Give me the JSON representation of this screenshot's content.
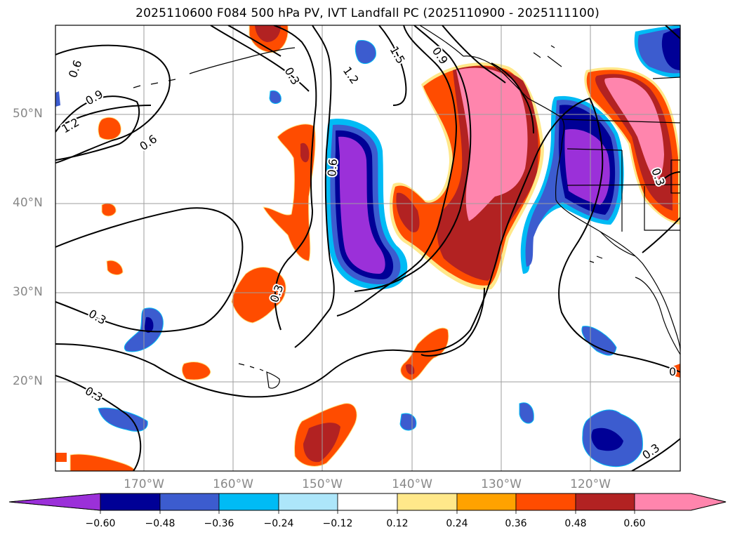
{
  "title": "2025110600 F084 500 hPa PV, IVT Landfall PC (2025110900 - 2025111100)",
  "map": {
    "lat_labels": [
      "50°N",
      "40°N",
      "30°N",
      "20°N"
    ],
    "lon_labels": [
      "170°W",
      "160°W",
      "150°W",
      "140°W",
      "130°W",
      "120°W"
    ],
    "contour_labels": [
      "0.6",
      "0.9",
      "1.2",
      "0.6",
      "0.3",
      "1.2",
      "1.5",
      "0.9",
      "0.6",
      "0.3",
      "0.3",
      "0.3",
      "0.3",
      "0.3",
      "0"
    ]
  },
  "colorbar": {
    "ticks": [
      "−0.60",
      "−0.48",
      "−0.36",
      "−0.24",
      "−0.12",
      "0.12",
      "0.24",
      "0.36",
      "0.48",
      "0.60"
    ],
    "colors": [
      "#9b30d9",
      "#000096",
      "#3c5ccf",
      "#00bbf5",
      "#ade6fa",
      "#ffffff",
      "#ffe88a",
      "#ffa200",
      "#ff4c00",
      "#b22222",
      "#ff85ad"
    ]
  }
}
